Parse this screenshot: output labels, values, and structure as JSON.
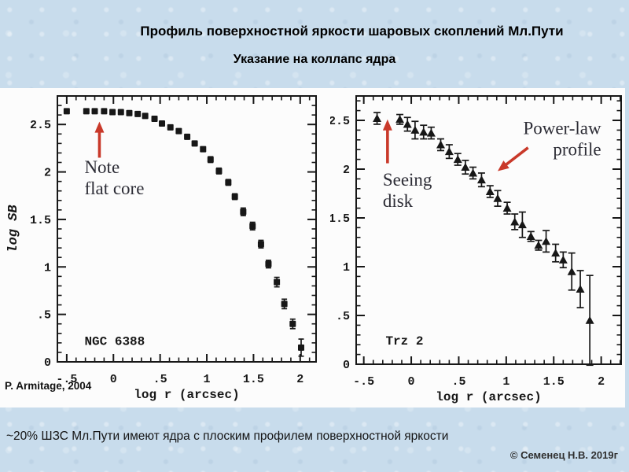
{
  "slide": {
    "title": "Профиль поверхностной яркости шаровых скоплений Мл.Пути",
    "subtitle": "Указание на коллапс ядра",
    "source_credit": "P. Armitage, 2004",
    "caption": "~20% ШЗС Мл.Пути имеют ядра с плоским профилем поверхностной яркости",
    "copyright": "© Семенец Н.В. 2019г"
  },
  "colors": {
    "background": "#c8dcec",
    "figure_background": "#fcfcfc",
    "ink": "#171717",
    "arrow_red": "#c9392a",
    "annotation_text": "#2d2d36"
  },
  "chart_data": [
    {
      "type": "scatter",
      "cluster_label": "NGC 6388",
      "marker": "square",
      "xlabel": "log r (arcsec)",
      "ylabel": "log SB",
      "xlim": [
        -0.6,
        2.17
      ],
      "ylim": [
        0,
        2.8
      ],
      "grid": false,
      "x_ticks": {
        "minor_step": 0.1,
        "major": [
          -0.5,
          0,
          0.5,
          1,
          1.5,
          2
        ],
        "labels": [
          "-.5",
          "0",
          ".5",
          "1",
          "1.5",
          "2"
        ]
      },
      "y_ticks": {
        "minor_step": 0.1,
        "major": [
          0,
          0.5,
          1,
          1.5,
          2,
          2.5
        ],
        "labels": [
          "0",
          ".5",
          "1",
          "1.5",
          "2",
          "2.5"
        ]
      },
      "points": [
        [
          -0.5,
          2.64,
          0
        ],
        [
          -0.29,
          2.64,
          0
        ],
        [
          -0.2,
          2.64,
          0
        ],
        [
          -0.1,
          2.64,
          0
        ],
        [
          -0.01,
          2.63,
          0
        ],
        [
          0.08,
          2.63,
          0
        ],
        [
          0.17,
          2.62,
          0
        ],
        [
          0.26,
          2.61,
          0
        ],
        [
          0.34,
          2.59,
          0
        ],
        [
          0.44,
          2.56,
          0
        ],
        [
          0.52,
          2.51,
          0
        ],
        [
          0.61,
          2.47,
          0
        ],
        [
          0.7,
          2.43,
          0
        ],
        [
          0.79,
          2.37,
          0
        ],
        [
          0.87,
          2.3,
          0
        ],
        [
          0.96,
          2.24,
          0
        ],
        [
          1.04,
          2.13,
          0.03
        ],
        [
          1.13,
          2.01,
          0.03
        ],
        [
          1.23,
          1.89,
          0.03
        ],
        [
          1.3,
          1.74,
          0.03
        ],
        [
          1.39,
          1.58,
          0.04
        ],
        [
          1.49,
          1.43,
          0.04
        ],
        [
          1.58,
          1.24,
          0.04
        ],
        [
          1.66,
          1.03,
          0.04
        ],
        [
          1.75,
          0.84,
          0.05
        ],
        [
          1.83,
          0.61,
          0.05
        ],
        [
          1.92,
          0.4,
          0.05
        ],
        [
          2.01,
          0.15,
          0.09
        ]
      ],
      "label_pos": [
        -0.31,
        0.18
      ],
      "annotations": [
        {
          "lines": [
            "Note",
            "flat core"
          ],
          "x": -0.31,
          "y": 1.99,
          "anchor": "start"
        }
      ],
      "arrows": [
        {
          "tail": [
            -0.15,
            2.15
          ],
          "tip": [
            -0.15,
            2.53
          ]
        }
      ]
    },
    {
      "type": "scatter",
      "cluster_label": "Trz 2",
      "marker": "triangle",
      "xlabel": "log r (arcsec)",
      "ylabel": "",
      "xlim": [
        -0.58,
        2.21
      ],
      "ylim": [
        0,
        2.75
      ],
      "grid": false,
      "x_ticks": {
        "minor_step": 0.1,
        "major": [
          -0.5,
          0,
          0.5,
          1,
          1.5,
          2
        ],
        "labels": [
          "-.5",
          "0",
          ".5",
          "1",
          "1.5",
          "2"
        ]
      },
      "y_ticks": {
        "minor_step": 0.1,
        "major": [
          0,
          0.5,
          1,
          1.5,
          2,
          2.5
        ],
        "labels": [
          "0",
          ".5",
          "1",
          "1.5",
          "2",
          "2.5"
        ]
      },
      "points": [
        [
          -0.36,
          2.52,
          0.06
        ],
        [
          -0.12,
          2.51,
          0.05
        ],
        [
          -0.04,
          2.46,
          0.07
        ],
        [
          0.04,
          2.4,
          0.09
        ],
        [
          0.13,
          2.38,
          0.07
        ],
        [
          0.21,
          2.37,
          0.06
        ],
        [
          0.31,
          2.25,
          0.06
        ],
        [
          0.4,
          2.18,
          0.07
        ],
        [
          0.49,
          2.1,
          0.06
        ],
        [
          0.57,
          2.02,
          0.07
        ],
        [
          0.65,
          1.96,
          0.06
        ],
        [
          0.74,
          1.89,
          0.07
        ],
        [
          0.83,
          1.77,
          0.06
        ],
        [
          0.91,
          1.7,
          0.08
        ],
        [
          1.01,
          1.6,
          0.06
        ],
        [
          1.09,
          1.46,
          0.08
        ],
        [
          1.17,
          1.43,
          0.13
        ],
        [
          1.26,
          1.31,
          0.05
        ],
        [
          1.34,
          1.22,
          0.05
        ],
        [
          1.42,
          1.26,
          0.11
        ],
        [
          1.52,
          1.14,
          0.09
        ],
        [
          1.6,
          1.07,
          0.08
        ],
        [
          1.69,
          0.95,
          0.19
        ],
        [
          1.78,
          0.77,
          0.19
        ],
        [
          1.88,
          0.45,
          0.46
        ]
      ],
      "label_pos": [
        -0.27,
        0.2
      ],
      "annotations": [
        {
          "lines": [
            "Seeing",
            "disk"
          ],
          "x": -0.3,
          "y": 1.83,
          "anchor": "start"
        },
        {
          "lines": [
            "Power-law",
            "profile"
          ],
          "x": 2.0,
          "y": 2.36,
          "anchor": "end"
        }
      ],
      "arrows": [
        {
          "tail": [
            -0.25,
            2.06
          ],
          "tip": [
            -0.25,
            2.51
          ]
        },
        {
          "tail": [
            1.23,
            2.22
          ],
          "tip": [
            0.91,
            1.98
          ]
        }
      ]
    }
  ]
}
